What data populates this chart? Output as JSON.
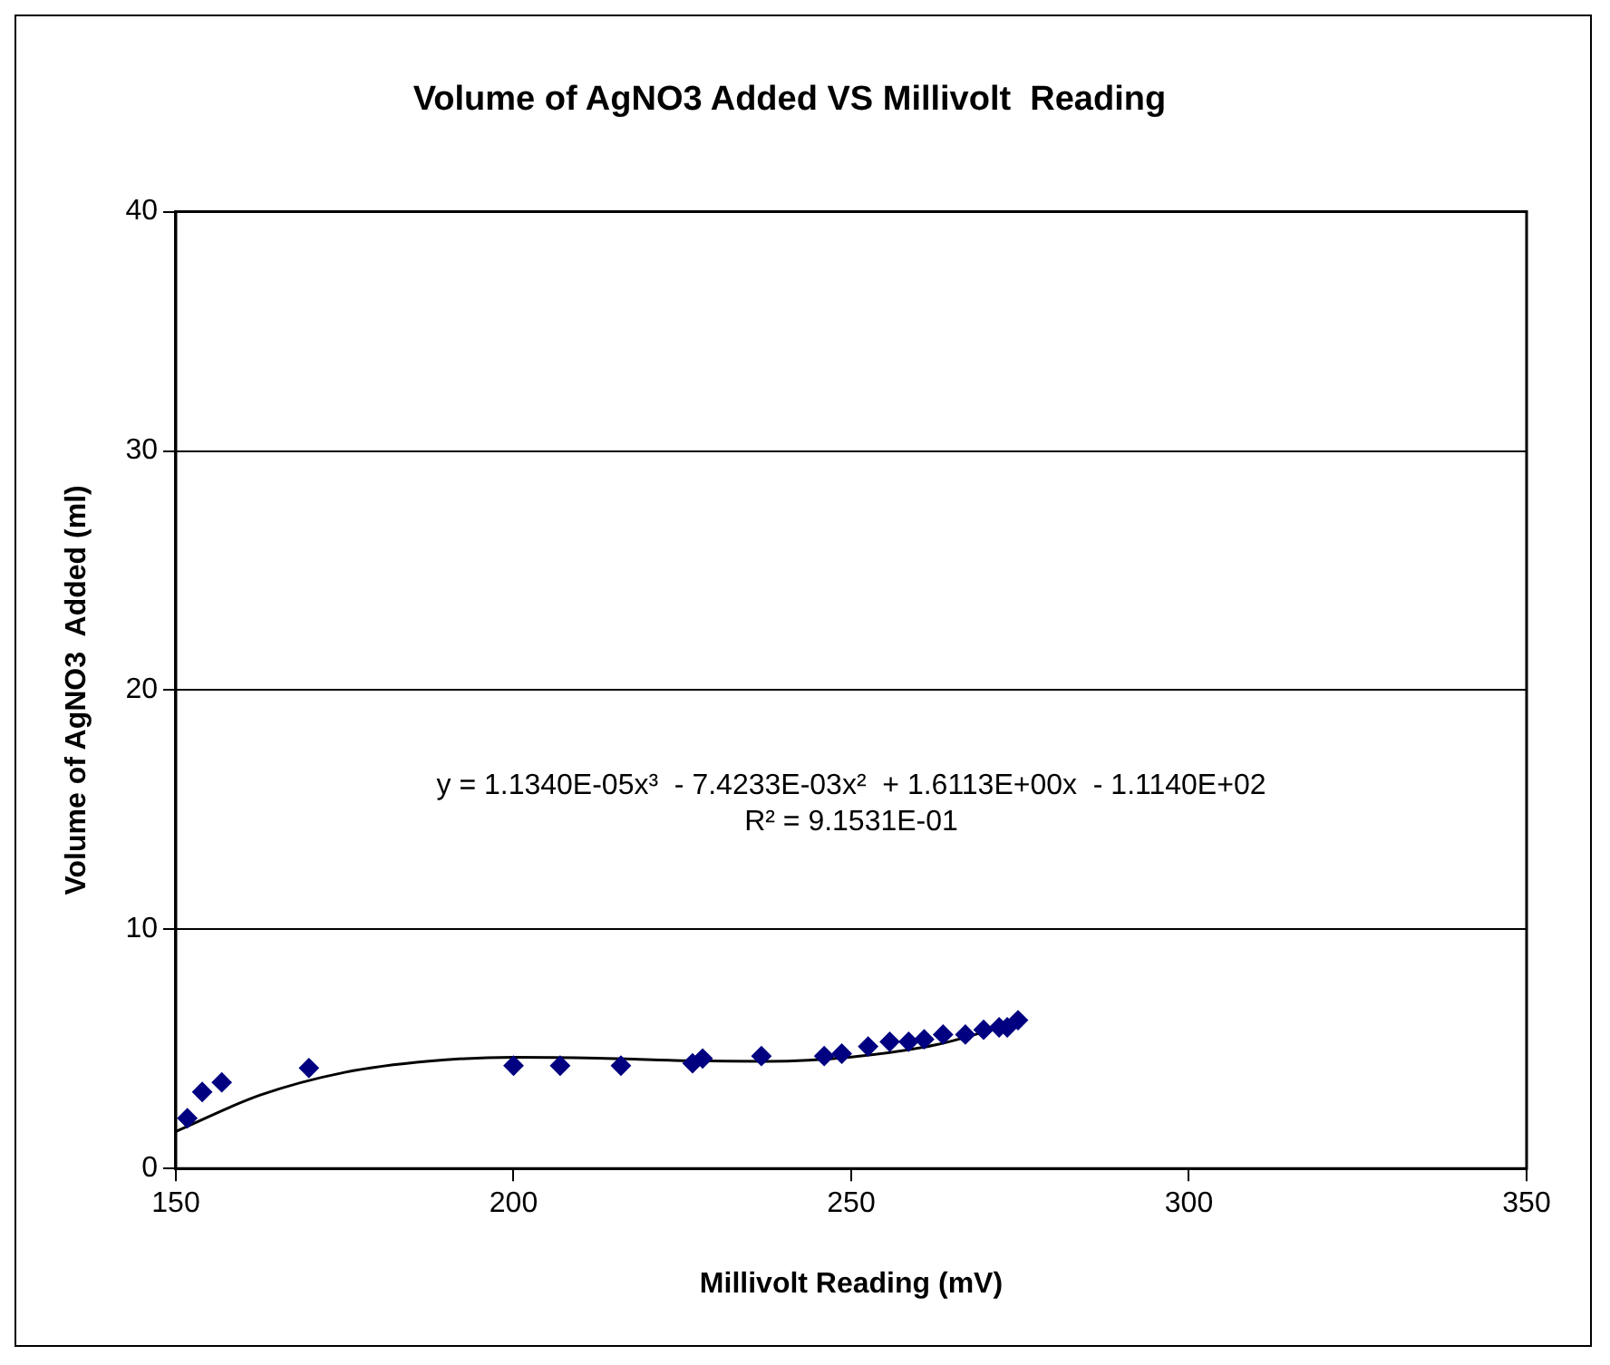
{
  "chart_data": {
    "type": "scatter",
    "title": "Volume of AgNO3 Added VS Millivolt  Reading",
    "xlabel": "Millivolt Reading (mV)",
    "ylabel": "Volume of AgNO3  Added (ml)",
    "annotations": [
      "y = 1.1340E-05x³  - 7.4233E-03x²  + 1.6113E+00x  - 1.1140E+02",
      "R² = 9.1531E-01"
    ],
    "series": [
      {
        "color": "#000080",
        "marker": "diamond",
        "x": [
          151.7,
          153.9,
          156.8,
          169.7,
          200,
          206.9,
          215.9,
          226.5,
          228,
          236.7,
          246,
          248.6,
          252.5,
          255.7,
          258.5,
          260.8,
          263.6,
          266.9,
          269.6,
          271.9,
          273.1,
          274.7
        ],
        "values": [
          2.1,
          3.2,
          3.6,
          4.2,
          4.3,
          4.3,
          4.3,
          4.4,
          4.6,
          4.7,
          4.7,
          4.8,
          5.1,
          5.3,
          5.3,
          5.4,
          5.6,
          5.6,
          5.8,
          5.9,
          5.9,
          6.2
        ]
      },
      {
        "type": "line",
        "color": "#000000",
        "marker": "none",
        "x": [
          150,
          162.5,
          175,
          187.5,
          200,
          212.5,
          225,
          237.5,
          250,
          262.5,
          275
        ],
        "values": [
          1.55,
          3.07,
          4.02,
          4.49,
          4.65,
          4.61,
          4.51,
          4.48,
          4.66,
          5.17,
          6.16
        ]
      }
    ],
    "xlim": [
      150,
      350
    ],
    "xticks": [
      150,
      200,
      250,
      300,
      350
    ],
    "ylim": [
      0,
      40
    ],
    "yticks": [
      0,
      10,
      20,
      30,
      40
    ],
    "grid": "y",
    "legend": false
  }
}
